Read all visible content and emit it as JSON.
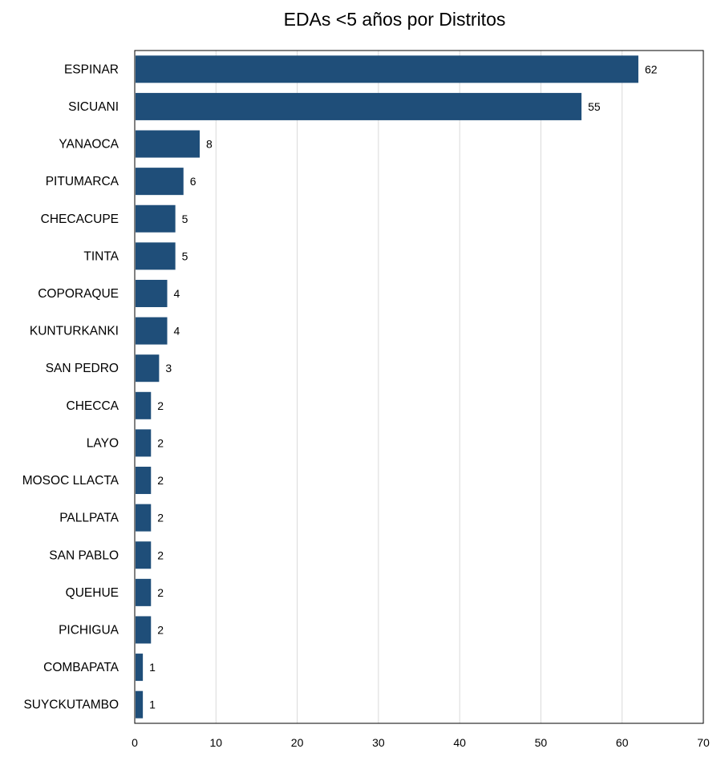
{
  "chart_data": {
    "type": "bar",
    "orientation": "horizontal",
    "title": "EDAs <5 años  por  Distritos",
    "xlabel": "",
    "ylabel": "",
    "categories": [
      "ESPINAR",
      "SICUANI",
      "YANAOCA",
      "PITUMARCA",
      "CHECACUPE",
      "TINTA",
      "COPORAQUE",
      "KUNTURKANKI",
      "SAN PEDRO",
      "CHECCA",
      "LAYO",
      "MOSOC LLACTA",
      "PALLPATA",
      "SAN PABLO",
      "QUEHUE",
      "PICHIGUA",
      "COMBAPATA",
      "SUYCKUTAMBO"
    ],
    "values": [
      62,
      55,
      8,
      6,
      5,
      5,
      4,
      4,
      3,
      2,
      2,
      2,
      2,
      2,
      2,
      2,
      1,
      1
    ],
    "xlim": [
      0,
      70
    ],
    "xticks": [
      0,
      10,
      20,
      30,
      40,
      50,
      60,
      70
    ],
    "grid": "vertical",
    "legend": "none",
    "bar_color": "#1f4e79"
  }
}
